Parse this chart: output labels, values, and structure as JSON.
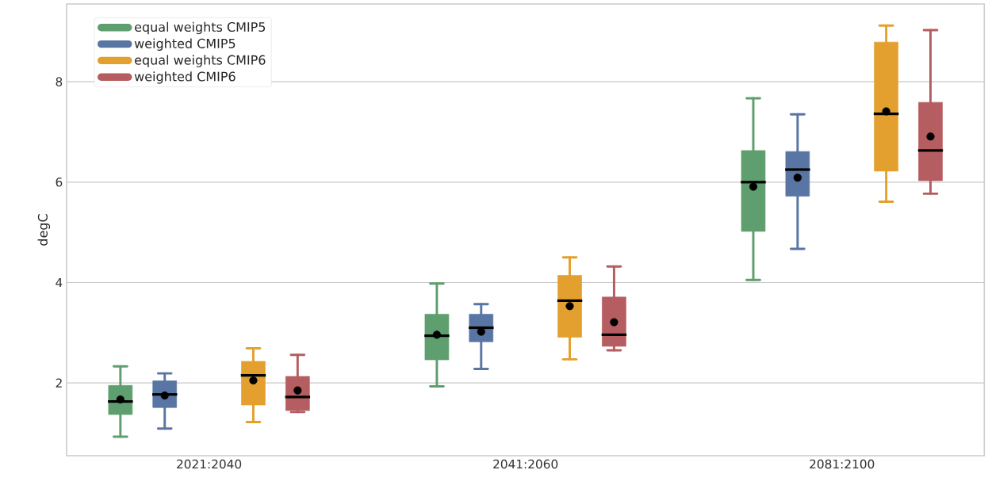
{
  "chart_data": {
    "type": "box",
    "ylabel": "degC",
    "categories": [
      "2021:2040",
      "2041:2060",
      "2081:2100"
    ],
    "ylim": [
      0.55,
      9.55
    ],
    "yticks": [
      2,
      4,
      6,
      8
    ],
    "grid": "y",
    "legend": "top left",
    "series": [
      {
        "name": "equal weights CMIP5",
        "color": "#5f9e6e",
        "boxes": [
          {
            "low": 0.93,
            "q1": 1.37,
            "median": 1.63,
            "q3": 1.95,
            "high": 2.33,
            "mean": 1.67
          },
          {
            "low": 1.93,
            "q1": 2.46,
            "median": 2.94,
            "q3": 3.37,
            "high": 3.98,
            "mean": 2.96
          },
          {
            "low": 4.05,
            "q1": 5.02,
            "median": 6.0,
            "q3": 6.63,
            "high": 7.67,
            "mean": 5.91
          }
        ]
      },
      {
        "name": "weighted CMIP5",
        "color": "#5975a4",
        "boxes": [
          {
            "low": 1.09,
            "q1": 1.51,
            "median": 1.77,
            "q3": 2.04,
            "high": 2.19,
            "mean": 1.75
          },
          {
            "low": 2.28,
            "q1": 2.82,
            "median": 3.1,
            "q3": 3.37,
            "high": 3.57,
            "mean": 3.02
          },
          {
            "low": 4.67,
            "q1": 5.72,
            "median": 6.25,
            "q3": 6.61,
            "high": 7.35,
            "mean": 6.09
          }
        ]
      },
      {
        "name": "equal weights CMIP6",
        "color": "#e3a02e",
        "boxes": [
          {
            "low": 1.22,
            "q1": 1.56,
            "median": 2.15,
            "q3": 2.43,
            "high": 2.69,
            "mean": 2.05
          },
          {
            "low": 2.47,
            "q1": 2.91,
            "median": 3.64,
            "q3": 4.14,
            "high": 4.5,
            "mean": 3.53
          },
          {
            "low": 5.61,
            "q1": 6.22,
            "median": 7.36,
            "q3": 8.79,
            "high": 9.12,
            "mean": 7.41
          }
        ]
      },
      {
        "name": "weighted CMIP6",
        "color": "#b55d60",
        "boxes": [
          {
            "low": 1.42,
            "q1": 1.45,
            "median": 1.72,
            "q3": 2.13,
            "high": 2.56,
            "mean": 1.85
          },
          {
            "low": 2.65,
            "q1": 2.73,
            "median": 2.96,
            "q3": 3.71,
            "high": 4.32,
            "mean": 3.21
          },
          {
            "low": 5.77,
            "q1": 6.03,
            "median": 6.63,
            "q3": 7.59,
            "high": 9.03,
            "mean": 6.91
          }
        ]
      }
    ]
  }
}
